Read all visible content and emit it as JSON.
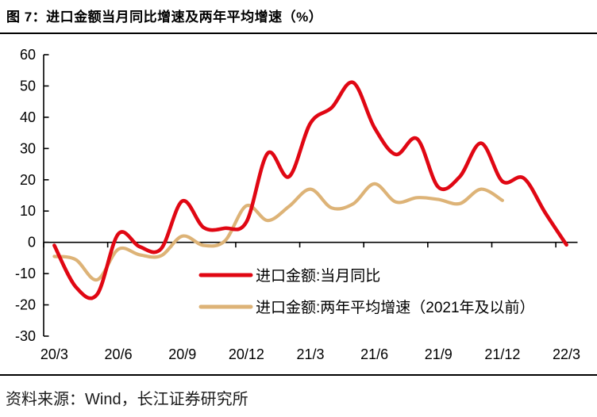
{
  "page": {
    "title": "图 7：进口金额当月同比增速及两年平均增速（%）",
    "source": "资料来源：Wind，长江证券研究所"
  },
  "chart_data": {
    "type": "line",
    "title": "进口金额当月同比增速及两年平均增速（%）",
    "unit": "%",
    "grid": false,
    "legend_position": "inside-bottom-center",
    "axis_color": "#000000",
    "ylim": [
      -30,
      60
    ],
    "ytick_step": 10,
    "y_tick_labels": [
      "60",
      "50",
      "40",
      "30",
      "20",
      "10",
      "0",
      "-10",
      "-20",
      "-30"
    ],
    "x_tick_labels": [
      "20/3",
      "20/6",
      "20/9",
      "20/12",
      "21/3",
      "21/6",
      "21/9",
      "21/12",
      "22/3"
    ],
    "x_months": [
      "20/3",
      "20/4",
      "20/5",
      "20/6",
      "20/7",
      "20/8",
      "20/9",
      "20/10",
      "20/11",
      "20/12",
      "21/1",
      "21/2",
      "21/3",
      "21/4",
      "21/5",
      "21/6",
      "21/7",
      "21/8",
      "21/9",
      "21/10",
      "21/11",
      "21/12",
      "22/1",
      "22/2",
      "22/3"
    ],
    "series": [
      {
        "name": "进口金额:当月同比",
        "color": "#e00713",
        "line_width": 4.6,
        "values": [
          -1,
          -14.2,
          -16.7,
          2.7,
          -1.4,
          -2.1,
          13.2,
          4.7,
          4.5,
          6.5,
          28.5,
          21,
          38.1,
          43.1,
          51.1,
          36.7,
          28.1,
          33.1,
          17.6,
          21,
          31.7,
          19.5,
          20.5,
          9.5,
          -0.8
        ]
      },
      {
        "name": "进口金额:两年平均增速（2021年及以前）",
        "color": "#ddb377",
        "line_width": 4.2,
        "values": [
          -4.5,
          -5.5,
          -12,
          -2.2,
          -4,
          -4.3,
          2,
          -1,
          0.5,
          11.7,
          7,
          11.5,
          17,
          11,
          12.3,
          18.7,
          12.9,
          14.3,
          13.7,
          12.4,
          17,
          13.4
        ]
      }
    ]
  }
}
